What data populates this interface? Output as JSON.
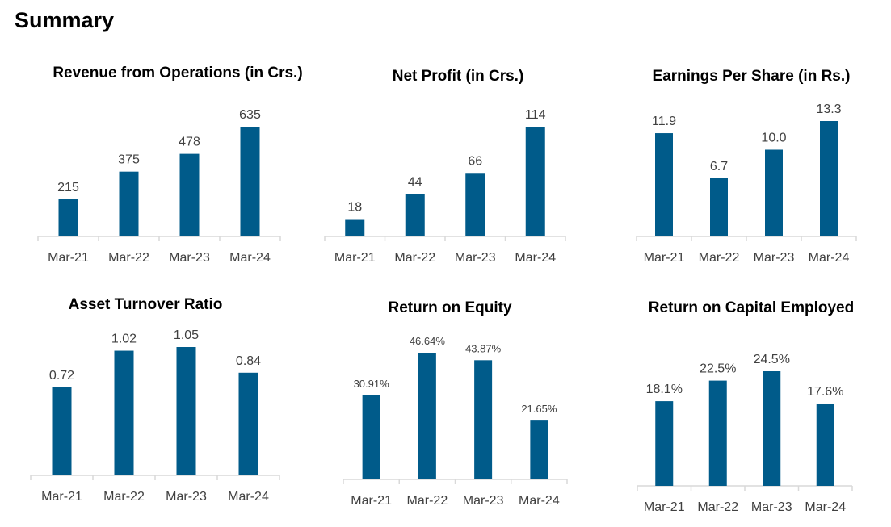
{
  "page": {
    "title": "Summary"
  },
  "colors": {
    "bar": "#005B8A",
    "axis": "#D9D9D9",
    "text": "#404040",
    "title": "#000000"
  },
  "chart_data": [
    {
      "type": "bar",
      "title": "Revenue from Operations (in Crs.)",
      "categories": [
        "Mar-21",
        "Mar-22",
        "Mar-23",
        "Mar-24"
      ],
      "values": [
        215,
        375,
        478,
        635
      ],
      "data_labels": [
        "215",
        "375",
        "478",
        "635"
      ],
      "xlabel": "",
      "ylabel": "",
      "ylim": [
        0,
        635
      ]
    },
    {
      "type": "bar",
      "title": "Net Profit (in Crs.)",
      "categories": [
        "Mar-21",
        "Mar-22",
        "Mar-23",
        "Mar-24"
      ],
      "values": [
        18,
        44,
        66,
        114
      ],
      "data_labels": [
        "18",
        "44",
        "66",
        "114"
      ],
      "xlabel": "",
      "ylabel": "",
      "ylim": [
        0,
        114
      ]
    },
    {
      "type": "bar",
      "title": "Earnings Per Share (in Rs.)",
      "categories": [
        "Mar-21",
        "Mar-22",
        "Mar-23",
        "Mar-24"
      ],
      "values": [
        11.9,
        6.7,
        10.0,
        13.3
      ],
      "data_labels": [
        "11.9",
        "6.7",
        "10.0",
        "13.3"
      ],
      "xlabel": "",
      "ylabel": "",
      "ylim": [
        0,
        13.3
      ]
    },
    {
      "type": "bar",
      "title": "Asset Turnover Ratio",
      "categories": [
        "Mar-21",
        "Mar-22",
        "Mar-23",
        "Mar-24"
      ],
      "values": [
        0.72,
        1.02,
        1.05,
        0.84
      ],
      "data_labels": [
        "0.72",
        "1.02",
        "1.05",
        "0.84"
      ],
      "xlabel": "",
      "ylabel": "",
      "ylim": [
        0,
        1.05
      ]
    },
    {
      "type": "bar",
      "title": "Return on Equity",
      "categories": [
        "Mar-21",
        "Mar-22",
        "Mar-23",
        "Mar-24"
      ],
      "values": [
        30.91,
        46.64,
        43.87,
        21.65
      ],
      "data_labels": [
        "30.91%",
        "46.64%",
        "43.87%",
        "21.65%"
      ],
      "xlabel": "",
      "ylabel": "",
      "ylim": [
        0,
        46.64
      ]
    },
    {
      "type": "bar",
      "title": "Return on Capital Employed",
      "categories": [
        "Mar-21",
        "Mar-22",
        "Mar-23",
        "Mar-24"
      ],
      "values": [
        18.1,
        22.5,
        24.5,
        17.6
      ],
      "data_labels": [
        "18.1%",
        "22.5%",
        "24.5%",
        "17.6%"
      ],
      "xlabel": "",
      "ylabel": "",
      "ylim": [
        0,
        24.5
      ]
    }
  ]
}
